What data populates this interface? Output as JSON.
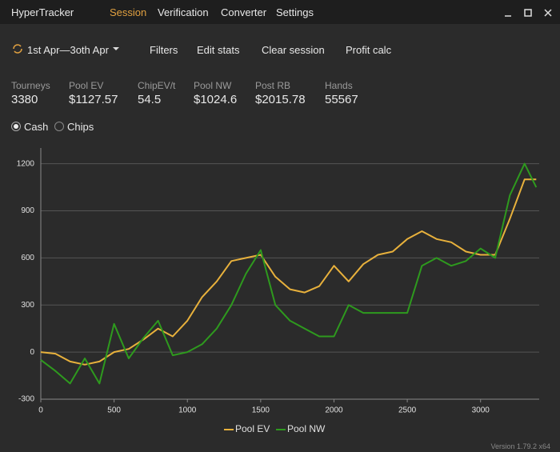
{
  "app": {
    "name": "HyperTracker",
    "menu": [
      "Session",
      "Verification",
      "Converter",
      "Settings"
    ]
  },
  "toolbar": {
    "date_range": "1st Apr—3oth Apr",
    "buttons": [
      "Filters",
      "Edit stats",
      "Clear session",
      "Profit calc"
    ]
  },
  "stats": [
    {
      "label": "Tourneys",
      "value": "3380"
    },
    {
      "label": "Pool EV",
      "value": "$1127.57"
    },
    {
      "label": "ChipEV/t",
      "value": "54.5"
    },
    {
      "label": "Pool NW",
      "value": "$1024.6"
    },
    {
      "label": "Post RB",
      "value": "$2015.78"
    },
    {
      "label": "Hands",
      "value": "55567"
    }
  ],
  "mode": {
    "options": [
      "Cash",
      "Chips"
    ]
  },
  "chart_data": {
    "type": "line",
    "x": [
      0,
      100,
      200,
      300,
      400,
      500,
      600,
      700,
      800,
      900,
      1000,
      1100,
      1200,
      1300,
      1400,
      1500,
      1600,
      1700,
      1800,
      1900,
      2000,
      2100,
      2200,
      2300,
      2400,
      2500,
      2600,
      2700,
      2800,
      2900,
      3000,
      3100,
      3200,
      3300,
      3380
    ],
    "series": [
      {
        "name": "Pool EV",
        "color": "#e8b13c",
        "values": [
          0,
          -10,
          -60,
          -80,
          -60,
          0,
          20,
          80,
          150,
          100,
          200,
          350,
          450,
          580,
          600,
          620,
          480,
          400,
          380,
          420,
          550,
          450,
          560,
          620,
          640,
          720,
          770,
          720,
          700,
          640,
          620,
          620,
          850,
          1100,
          1100
        ]
      },
      {
        "name": "Pool NW",
        "color": "#2e9a1e",
        "values": [
          -50,
          -120,
          -200,
          -40,
          -200,
          180,
          -40,
          90,
          200,
          -20,
          0,
          50,
          150,
          300,
          500,
          650,
          300,
          200,
          150,
          100,
          100,
          300,
          250,
          250,
          250,
          250,
          550,
          600,
          550,
          580,
          660,
          600,
          1000,
          1200,
          1050
        ]
      }
    ],
    "xlim": [
      0,
      3400
    ],
    "ylim": [
      -300,
      1300
    ],
    "xticks": [
      0,
      500,
      1000,
      1500,
      2000,
      2500,
      3000
    ],
    "yticks": [
      -300,
      0,
      300,
      600,
      900,
      1200
    ],
    "grid": true,
    "legend": "bottom"
  },
  "version": "Version 1.79.2 x64"
}
